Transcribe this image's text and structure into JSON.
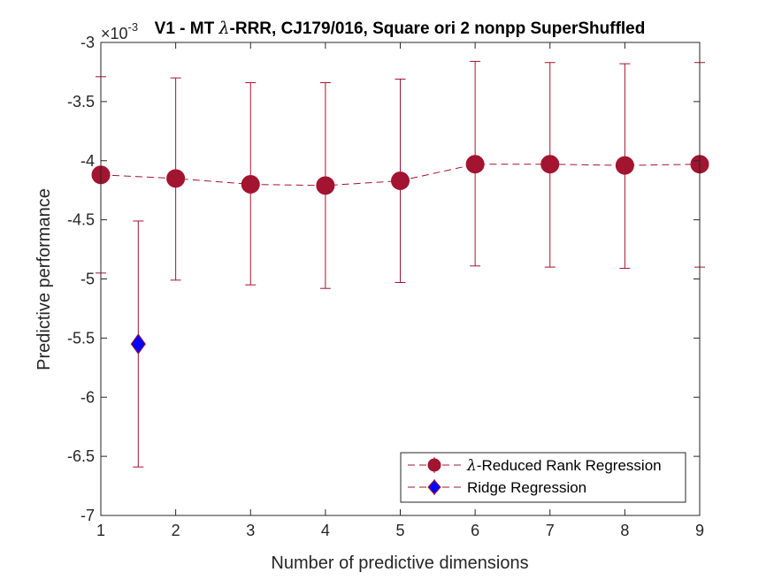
{
  "chart_data": {
    "type": "line",
    "title_prefix": "V1 - MT ",
    "title_lambda": "λ",
    "title_suffix": "-RRR, CJ179/016, Square ori 2 nonpp  SuperShuffled",
    "exponent_label": "×10",
    "exponent_power": "-3",
    "xlabel": "Number of predictive dimensions",
    "ylabel": "Predictive performance",
    "xlim": [
      1,
      9
    ],
    "ylim": [
      -7,
      -3
    ],
    "xticks": [
      1,
      2,
      3,
      4,
      5,
      6,
      7,
      8,
      9
    ],
    "yticks": [
      -7,
      -6.5,
      -6,
      -5.5,
      -5,
      -4.5,
      -4,
      -3.5,
      -3
    ],
    "ytick_labels": [
      "-7",
      "-6.5",
      "-6",
      "-5.5",
      "-5",
      "-4.5",
      "-4",
      "-3.5",
      "-3"
    ],
    "grid": false,
    "legend_position": "bottom-right",
    "series": [
      {
        "name": "λ-Reduced Rank Regression",
        "name_lambda": "λ",
        "name_rest": "-Reduced Rank Regression",
        "color": "#A2142F",
        "marker": "circle",
        "line_style": "dashed",
        "x": [
          1,
          2,
          3,
          4,
          5,
          6,
          7,
          8,
          9
        ],
        "y": [
          -4.12,
          -4.15,
          -4.2,
          -4.21,
          -4.17,
          -4.03,
          -4.03,
          -4.04,
          -4.03
        ],
        "err_low": [
          -4.95,
          -5.01,
          -5.05,
          -5.08,
          -5.03,
          -4.89,
          -4.9,
          -4.91,
          -4.9
        ],
        "err_high": [
          -3.29,
          -3.3,
          -3.34,
          -3.34,
          -3.31,
          -3.16,
          -3.17,
          -3.18,
          -3.17
        ]
      },
      {
        "name": "Ridge Regression",
        "color": "#0000FF",
        "edge_color": "#A2142F",
        "marker": "diamond",
        "x": [
          1.5
        ],
        "y": [
          -5.55
        ],
        "err_low": [
          -6.59
        ],
        "err_high": [
          -4.51
        ]
      }
    ]
  }
}
